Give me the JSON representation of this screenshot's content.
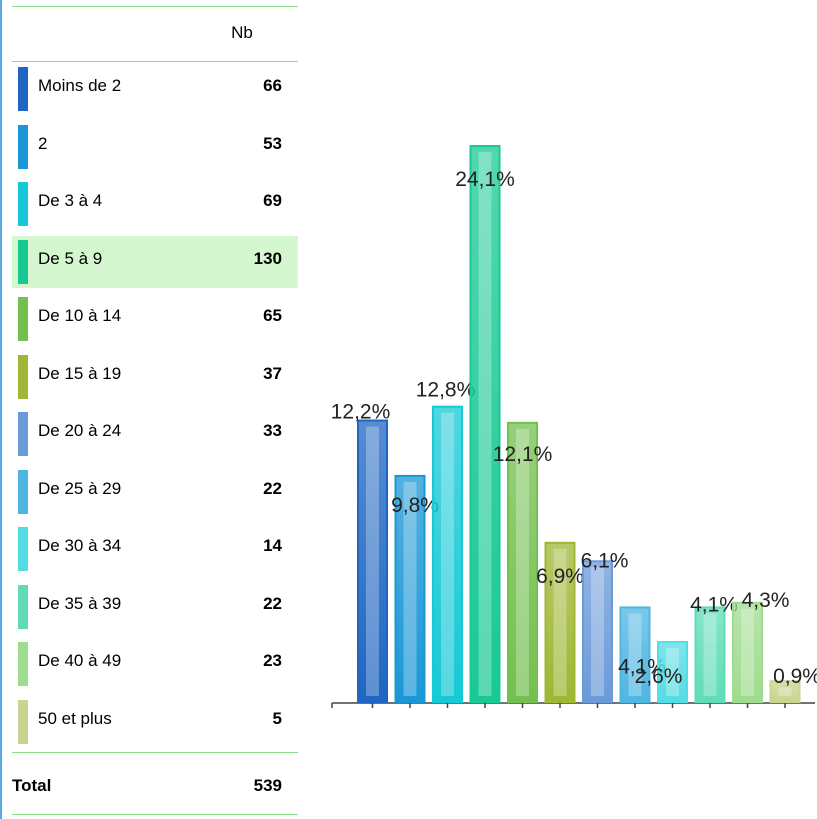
{
  "table": {
    "header_nb": "Nb",
    "rows": [
      {
        "label": "Moins de 2",
        "value": "66",
        "color": "#1f66c2"
      },
      {
        "label": "2",
        "value": "53",
        "color": "#1a97d6"
      },
      {
        "label": "De 3 à 4",
        "value": "69",
        "color": "#16c9d6"
      },
      {
        "label": "De 5 à 9",
        "value": "130",
        "color": "#19c994",
        "highlight": true
      },
      {
        "label": "De 10 à 14",
        "value": "65",
        "color": "#73c04f"
      },
      {
        "label": "De 15 à 19",
        "value": "37",
        "color": "#9fb734"
      },
      {
        "label": "De 20 à 24",
        "value": "33",
        "color": "#6b9ad9"
      },
      {
        "label": "De 25 à 29",
        "value": "22",
        "color": "#4fb6e2"
      },
      {
        "label": "De 30 à 34",
        "value": "14",
        "color": "#53dce4"
      },
      {
        "label": "De 35 à 39",
        "value": "22",
        "color": "#5fdcb6"
      },
      {
        "label": "De 40 à 49",
        "value": "23",
        "color": "#9fdc8f"
      },
      {
        "label": "50 et plus",
        "value": "5",
        "color": "#c9d48f"
      }
    ],
    "total_label": "Total",
    "total_value": "539"
  },
  "chart_data": {
    "type": "bar",
    "categories": [
      "Moins de 2",
      "2",
      "De 3 à 4",
      "De 5 à 9",
      "De 10 à 14",
      "De 15 à 19",
      "De 20 à 24",
      "De 25 à 29",
      "De 30 à 34",
      "De 35 à 39",
      "De 40 à 49",
      "50 et plus"
    ],
    "values": [
      12.2,
      9.8,
      12.8,
      24.1,
      12.1,
      6.9,
      6.1,
      4.1,
      2.6,
      4.1,
      4.3,
      0.9
    ],
    "data_labels": [
      "12,2%",
      "9,8%",
      "12,8%",
      "24,1%",
      "12,1%",
      "6,9%",
      "6,1%",
      "4,1%",
      "2,6%",
      "4,1%",
      "4,3%",
      "0,9%"
    ],
    "colors": [
      "#1f66c2",
      "#1a97d6",
      "#16c9d6",
      "#19c994",
      "#73c04f",
      "#9fb734",
      "#6b9ad9",
      "#4fb6e2",
      "#53dce4",
      "#5fdcb6",
      "#9fdc8f",
      "#c9d48f"
    ],
    "ylim": [
      0,
      24.1
    ],
    "grid": false
  }
}
